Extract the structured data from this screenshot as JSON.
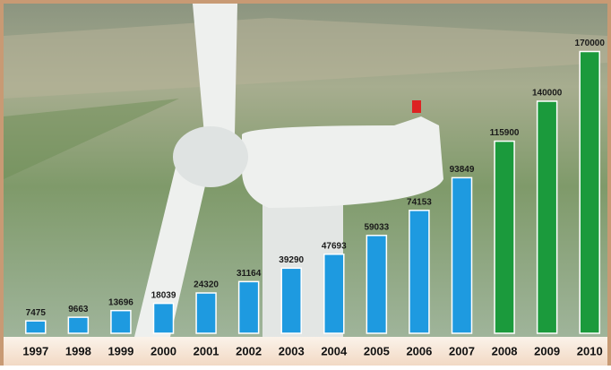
{
  "chart_data": {
    "type": "bar",
    "categories": [
      "1997",
      "1998",
      "1999",
      "2000",
      "2001",
      "2002",
      "2003",
      "2004",
      "2005",
      "2006",
      "2007",
      "2008",
      "2009",
      "2010"
    ],
    "values": [
      7475,
      9663,
      13696,
      18039,
      24320,
      31164,
      39290,
      47693,
      59033,
      74153,
      93849,
      115900,
      140000,
      170000
    ],
    "colors": [
      "#1e9ae0",
      "#1e9ae0",
      "#1e9ae0",
      "#1e9ae0",
      "#1e9ae0",
      "#1e9ae0",
      "#1e9ae0",
      "#1e9ae0",
      "#1e9ae0",
      "#1e9ae0",
      "#1e9ae0",
      "#1b9a3c",
      "#1b9a3c",
      "#1b9a3c"
    ],
    "ylim": [
      0,
      180000
    ]
  }
}
